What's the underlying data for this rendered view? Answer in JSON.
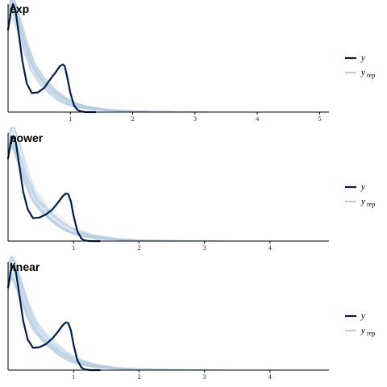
{
  "chart_data": [
    {
      "type": "line",
      "title": "exp",
      "xlim": [
        0,
        5.15
      ],
      "ylim": [
        0,
        1.7
      ],
      "ticks": [
        1,
        2,
        3,
        4,
        5
      ],
      "tick_labels": [
        "1",
        "2",
        "3",
        "4",
        "5"
      ],
      "series": [
        {
          "name": "y",
          "x": [
            0,
            0.04,
            0.08,
            0.12,
            0.17,
            0.23,
            0.3,
            0.38,
            0.48,
            0.58,
            0.68,
            0.76,
            0.83,
            0.88,
            0.91,
            0.95,
            1.0,
            1.06,
            1.12,
            1.17,
            1.25,
            1.4
          ],
          "y": [
            1.3,
            1.55,
            1.7,
            1.6,
            1.25,
            0.8,
            0.45,
            0.3,
            0.31,
            0.38,
            0.52,
            0.62,
            0.72,
            0.75,
            0.72,
            0.55,
            0.3,
            0.1,
            0.03,
            0.01,
            0.0,
            0.0
          ]
        },
        {
          "name": "y_rep",
          "x": [
            0,
            0.05,
            0.1,
            0.18,
            0.28,
            0.4,
            0.55,
            0.7,
            0.85,
            1.0,
            1.2,
            1.5,
            1.8,
            2.2,
            2.6,
            3.0,
            5.1
          ],
          "y": [
            1.5,
            1.8,
            1.65,
            1.4,
            1.05,
            0.72,
            0.5,
            0.34,
            0.22,
            0.14,
            0.08,
            0.04,
            0.02,
            0.01,
            0.005,
            0.0,
            0.0
          ]
        }
      ],
      "legend": {
        "y_label": "y",
        "yrep_label": "y",
        "yrep_sub": "rep",
        "position": "right"
      }
    },
    {
      "type": "line",
      "title": "power",
      "xlim": [
        0,
        4.9
      ],
      "ylim": [
        0,
        1.7
      ],
      "ticks": [
        1,
        2,
        3,
        4
      ],
      "tick_labels": [
        "1",
        "2",
        "3",
        "4"
      ],
      "series": [
        {
          "name": "y",
          "x": [
            0,
            0.04,
            0.08,
            0.12,
            0.17,
            0.23,
            0.3,
            0.38,
            0.48,
            0.58,
            0.68,
            0.76,
            0.83,
            0.88,
            0.92,
            0.96,
            1.0,
            1.06,
            1.12,
            1.17,
            1.25,
            1.4
          ],
          "y": [
            1.3,
            1.55,
            1.65,
            1.55,
            1.2,
            0.78,
            0.5,
            0.36,
            0.37,
            0.42,
            0.5,
            0.6,
            0.7,
            0.75,
            0.74,
            0.62,
            0.4,
            0.15,
            0.04,
            0.01,
            0.0,
            0.0
          ]
        },
        {
          "name": "y_rep",
          "x": [
            0,
            0.05,
            0.1,
            0.18,
            0.28,
            0.4,
            0.55,
            0.7,
            0.85,
            1.0,
            1.2,
            1.5,
            1.8,
            2.2,
            2.6,
            3.0,
            4.9
          ],
          "y": [
            1.5,
            1.75,
            1.6,
            1.35,
            1.02,
            0.72,
            0.52,
            0.37,
            0.25,
            0.16,
            0.09,
            0.04,
            0.02,
            0.01,
            0.005,
            0.0,
            0.0
          ]
        }
      ],
      "legend": {
        "y_label": "y",
        "yrep_label": "y",
        "yrep_sub": "rep",
        "position": "right"
      }
    },
    {
      "type": "line",
      "title": "linear",
      "xlim": [
        0,
        4.9
      ],
      "ylim": [
        0,
        1.7
      ],
      "ticks": [
        1,
        2,
        3,
        4
      ],
      "tick_labels": [
        "1",
        "2",
        "3",
        "4"
      ],
      "series": [
        {
          "name": "y",
          "x": [
            0,
            0.04,
            0.08,
            0.12,
            0.17,
            0.23,
            0.3,
            0.38,
            0.48,
            0.58,
            0.68,
            0.76,
            0.83,
            0.88,
            0.92,
            0.96,
            1.0,
            1.06,
            1.12,
            1.17,
            1.25,
            1.4
          ],
          "y": [
            1.3,
            1.55,
            1.65,
            1.55,
            1.2,
            0.78,
            0.48,
            0.35,
            0.36,
            0.41,
            0.5,
            0.6,
            0.7,
            0.75,
            0.74,
            0.62,
            0.4,
            0.15,
            0.04,
            0.01,
            0.0,
            0.0
          ]
        },
        {
          "name": "y_rep",
          "x": [
            0,
            0.05,
            0.1,
            0.18,
            0.28,
            0.4,
            0.55,
            0.7,
            0.85,
            1.0,
            1.2,
            1.5,
            1.8,
            2.2,
            2.6,
            3.0,
            4.9
          ],
          "y": [
            1.5,
            1.75,
            1.6,
            1.35,
            1.02,
            0.72,
            0.52,
            0.37,
            0.25,
            0.16,
            0.09,
            0.04,
            0.02,
            0.01,
            0.005,
            0.0,
            0.0
          ]
        }
      ],
      "legend": {
        "y_label": "y",
        "yrep_label": "y",
        "yrep_sub": "rep",
        "position": "right"
      }
    }
  ],
  "colors": {
    "y": "#011f4b",
    "y_rep": "#b3cde0",
    "axis": "#000000"
  }
}
